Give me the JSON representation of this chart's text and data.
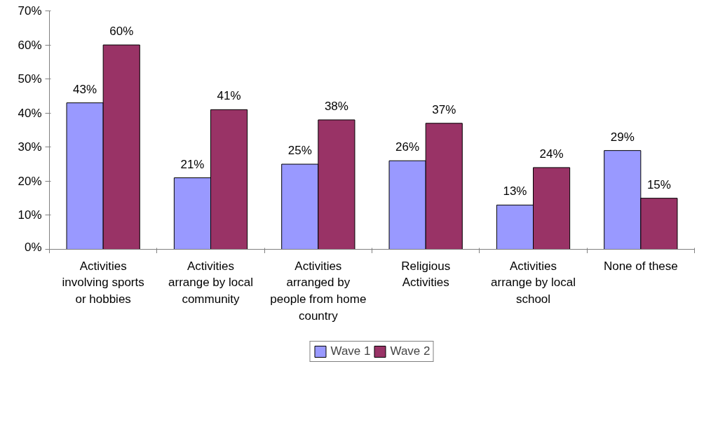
{
  "chart_data": {
    "type": "bar",
    "categories": [
      "Activities involving sports or hobbies",
      "Activities arrange by local community",
      "Activities arranged by people from home country",
      "Religious Activities",
      "Activities arrange by local school",
      "None of these"
    ],
    "series": [
      {
        "name": "Wave 1",
        "color": "#9999ff",
        "values": [
          43,
          21,
          25,
          26,
          13,
          29
        ],
        "value_labels": [
          "43%",
          "21%",
          "25%",
          "26%",
          "13%",
          "29%"
        ]
      },
      {
        "name": "Wave 2",
        "color": "#993366",
        "values": [
          60,
          41,
          38,
          37,
          24,
          15
        ],
        "value_labels": [
          "60%",
          "41%",
          "38%",
          "37%",
          "24%",
          "15%"
        ]
      }
    ],
    "ylim": [
      0,
      70
    ],
    "yticks": [
      {
        "value": 0,
        "label": "0%"
      },
      {
        "value": 10,
        "label": "10%"
      },
      {
        "value": 20,
        "label": "20%"
      },
      {
        "value": 30,
        "label": "30%"
      },
      {
        "value": 40,
        "label": "40%"
      },
      {
        "value": 50,
        "label": "50%"
      },
      {
        "value": 60,
        "label": "60%"
      },
      {
        "value": 70,
        "label": "70%"
      }
    ],
    "grid": false,
    "legend": "bottom"
  }
}
